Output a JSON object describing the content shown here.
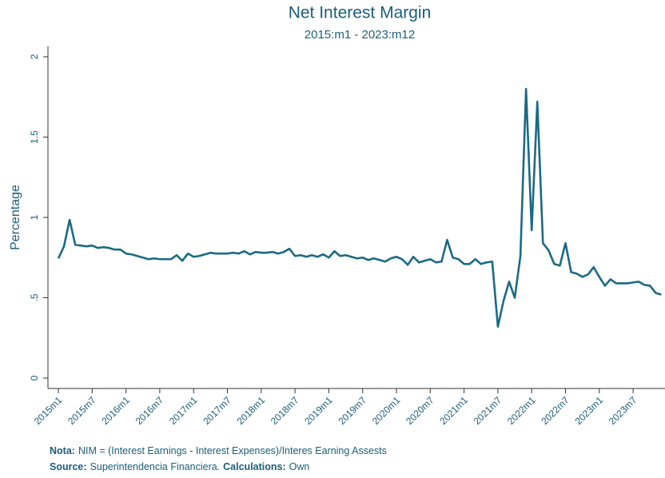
{
  "chart_data": {
    "type": "line",
    "title": "Net Interest Margin",
    "subtitle": "2015:m1 - 2023:m12",
    "y_label": "Percentage",
    "categories": [
      "2015m1",
      null,
      null,
      null,
      null,
      null,
      "2015m7",
      null,
      null,
      null,
      null,
      null,
      "2016m1",
      null,
      null,
      null,
      null,
      null,
      "2016m7",
      null,
      null,
      null,
      null,
      null,
      "2017m1",
      null,
      null,
      null,
      null,
      null,
      "2017m7",
      null,
      null,
      null,
      null,
      null,
      "2018m1",
      null,
      null,
      null,
      null,
      null,
      "2018m7",
      null,
      null,
      null,
      null,
      null,
      "2019m1",
      null,
      null,
      null,
      null,
      null,
      "2019m7",
      null,
      null,
      null,
      null,
      null,
      "2020m1",
      null,
      null,
      null,
      null,
      null,
      "2020m7",
      null,
      null,
      null,
      null,
      null,
      "2021m1",
      null,
      null,
      null,
      null,
      null,
      "2021m7",
      null,
      null,
      null,
      null,
      null,
      "2022m1",
      null,
      null,
      null,
      null,
      null,
      "2022m7",
      null,
      null,
      null,
      null,
      null,
      "2023m1",
      null,
      null,
      null,
      null,
      null,
      "2023m7",
      null,
      null,
      null,
      null,
      null
    ],
    "series": [
      {
        "name": "NIM",
        "color": "#1b6a86",
        "values": [
          0.745,
          0.82,
          0.985,
          0.83,
          0.825,
          0.82,
          0.825,
          0.81,
          0.815,
          0.81,
          0.8,
          0.8,
          0.775,
          0.77,
          0.76,
          0.75,
          0.74,
          0.745,
          0.74,
          0.74,
          0.74,
          0.765,
          0.73,
          0.775,
          0.755,
          0.76,
          0.77,
          0.78,
          0.775,
          0.775,
          0.775,
          0.78,
          0.775,
          0.79,
          0.77,
          0.785,
          0.78,
          0.78,
          0.785,
          0.775,
          0.785,
          0.805,
          0.76,
          0.765,
          0.755,
          0.765,
          0.755,
          0.77,
          0.75,
          0.79,
          0.76,
          0.765,
          0.755,
          0.745,
          0.75,
          0.735,
          0.745,
          0.735,
          0.725,
          0.745,
          0.755,
          0.74,
          0.705,
          0.755,
          0.72,
          0.73,
          0.74,
          0.72,
          0.725,
          0.86,
          0.75,
          0.74,
          0.71,
          0.71,
          0.74,
          0.71,
          0.72,
          0.725,
          0.32,
          0.48,
          0.6,
          0.5,
          0.76,
          1.8,
          0.92,
          1.72,
          0.84,
          0.795,
          0.71,
          0.7,
          0.84,
          0.66,
          0.65,
          0.63,
          0.645,
          0.69,
          0.63,
          0.575,
          0.615,
          0.59,
          0.59,
          0.59,
          0.595,
          0.6,
          0.58,
          0.575,
          0.53,
          0.52
        ]
      }
    ],
    "ylim": [
      0,
      2
    ],
    "yticks": [
      0,
      {
        "value": 0.5,
        "label": ".5"
      },
      1,
      1.5,
      2
    ],
    "notes": [
      [
        "Nota:",
        "NIM = (Interest Earnings - Interest Expenses)/Interes Earning Assests"
      ],
      [
        "Source:",
        "Superintendencia Financiera.",
        "Calculations:",
        "Own"
      ]
    ]
  }
}
